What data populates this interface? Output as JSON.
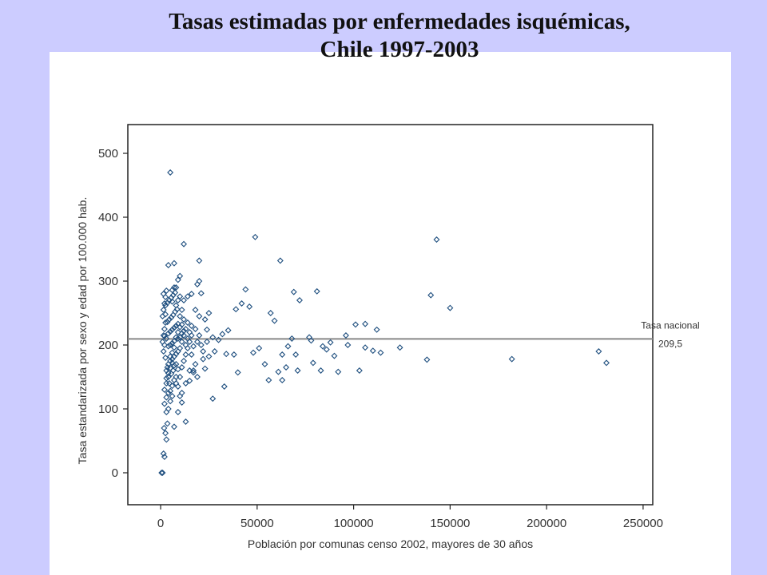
{
  "chart_data": {
    "type": "scatter",
    "title_line1": "Tasas estimadas por enfermedades isquémicas,",
    "title_line2": "Chile 1997-2003",
    "xlabel": "Población por comunas censo 2002, mayores de 30 años",
    "ylabel": "Tasa estandarizada por sexo y edad por 100.000 hab.",
    "xlim": [
      -17000,
      255000
    ],
    "ylim": [
      -50,
      545
    ],
    "x_ticks": [
      0,
      50000,
      100000,
      150000,
      200000,
      250000
    ],
    "x_tick_labels": [
      "0",
      "50000",
      "100000",
      "150000",
      "200000",
      "250000"
    ],
    "y_ticks": [
      0,
      100,
      200,
      300,
      400,
      500
    ],
    "y_tick_labels": [
      "0",
      "100",
      "200",
      "300",
      "400",
      "500"
    ],
    "grid": false,
    "reference_line": {
      "y": 209.5,
      "label_line1": "Tasa nacional",
      "label_line2": "209,5",
      "color": "#888888"
    },
    "marker_color": "#1f4f7f",
    "points": [
      [
        5000,
        470
      ],
      [
        49000,
        369
      ],
      [
        143000,
        365
      ],
      [
        12000,
        358
      ],
      [
        20000,
        332
      ],
      [
        62000,
        332
      ],
      [
        7000,
        328
      ],
      [
        4000,
        325
      ],
      [
        10000,
        308
      ],
      [
        9000,
        302
      ],
      [
        20000,
        300
      ],
      [
        19000,
        295
      ],
      [
        44000,
        287
      ],
      [
        81000,
        284
      ],
      [
        69000,
        283
      ],
      [
        8000,
        290
      ],
      [
        6000,
        286
      ],
      [
        21000,
        281
      ],
      [
        140000,
        278
      ],
      [
        72000,
        270
      ],
      [
        150000,
        258
      ],
      [
        42000,
        265
      ],
      [
        46000,
        260
      ],
      [
        39000,
        256
      ],
      [
        57000,
        250
      ],
      [
        59000,
        238
      ],
      [
        112000,
        224
      ],
      [
        101000,
        232
      ],
      [
        106000,
        233
      ],
      [
        77000,
        212
      ],
      [
        96000,
        215
      ],
      [
        68000,
        210
      ],
      [
        88000,
        204
      ],
      [
        84000,
        198
      ],
      [
        66000,
        198
      ],
      [
        106000,
        196
      ],
      [
        110000,
        191
      ],
      [
        114000,
        188
      ],
      [
        124000,
        196
      ],
      [
        138000,
        177
      ],
      [
        182000,
        178
      ],
      [
        227000,
        190
      ],
      [
        231000,
        172
      ],
      [
        63000,
        185
      ],
      [
        70000,
        185
      ],
      [
        78000,
        207
      ],
      [
        86000,
        193
      ],
      [
        90000,
        183
      ],
      [
        97000,
        200
      ],
      [
        54000,
        170
      ],
      [
        61000,
        158
      ],
      [
        65000,
        165
      ],
      [
        71000,
        160
      ],
      [
        79000,
        172
      ],
      [
        83000,
        160
      ],
      [
        92000,
        158
      ],
      [
        103000,
        160
      ],
      [
        56000,
        145
      ],
      [
        63000,
        145
      ],
      [
        48000,
        188
      ],
      [
        51000,
        195
      ],
      [
        38000,
        185
      ],
      [
        34000,
        186
      ],
      [
        28000,
        190
      ],
      [
        25000,
        182
      ],
      [
        22000,
        178
      ],
      [
        30000,
        208
      ],
      [
        32000,
        217
      ],
      [
        35000,
        223
      ],
      [
        27000,
        212
      ],
      [
        24000,
        205
      ],
      [
        40000,
        157
      ],
      [
        33000,
        135
      ],
      [
        27000,
        116
      ],
      [
        23000,
        163
      ],
      [
        19000,
        150
      ],
      [
        17000,
        157
      ],
      [
        15000,
        144
      ],
      [
        13000,
        80
      ],
      [
        11000,
        110
      ],
      [
        9000,
        95
      ],
      [
        7000,
        72
      ],
      [
        3000,
        52
      ],
      [
        2000,
        25
      ],
      [
        1500,
        30
      ],
      [
        1000,
        0
      ],
      [
        500,
        0
      ],
      [
        1800,
        70
      ],
      [
        2500,
        62
      ],
      [
        3500,
        77
      ],
      [
        2000,
        108
      ],
      [
        3000,
        118
      ],
      [
        4000,
        125
      ],
      [
        5000,
        128
      ],
      [
        6000,
        136
      ],
      [
        4500,
        140
      ],
      [
        7000,
        145
      ],
      [
        8000,
        150
      ],
      [
        5500,
        155
      ],
      [
        6500,
        160
      ],
      [
        3500,
        165
      ],
      [
        4000,
        170
      ],
      [
        5000,
        175
      ],
      [
        6000,
        178
      ],
      [
        7000,
        182
      ],
      [
        8000,
        186
      ],
      [
        9000,
        190
      ],
      [
        10000,
        195
      ],
      [
        4000,
        198
      ],
      [
        5000,
        200
      ],
      [
        6000,
        203
      ],
      [
        7000,
        206
      ],
      [
        3000,
        210
      ],
      [
        2000,
        214
      ],
      [
        4000,
        218
      ],
      [
        5000,
        221
      ],
      [
        6000,
        224
      ],
      [
        7000,
        227
      ],
      [
        8000,
        230
      ],
      [
        9000,
        233
      ],
      [
        3500,
        236
      ],
      [
        4500,
        240
      ],
      [
        5500,
        243
      ],
      [
        6500,
        247
      ],
      [
        7500,
        252
      ],
      [
        8500,
        256
      ],
      [
        2500,
        262
      ],
      [
        3500,
        266
      ],
      [
        4500,
        270
      ],
      [
        5500,
        274
      ],
      [
        6500,
        278
      ],
      [
        7500,
        282
      ],
      [
        2000,
        200
      ],
      [
        1500,
        190
      ],
      [
        2500,
        180
      ],
      [
        3000,
        160
      ],
      [
        1000,
        205
      ],
      [
        1500,
        215
      ],
      [
        2000,
        225
      ],
      [
        2500,
        235
      ],
      [
        1000,
        245
      ],
      [
        1500,
        255
      ],
      [
        2000,
        265
      ],
      [
        2500,
        275
      ],
      [
        1500,
        280
      ],
      [
        2500,
        248
      ],
      [
        10000,
        150
      ],
      [
        11000,
        165
      ],
      [
        12000,
        175
      ],
      [
        13000,
        185
      ],
      [
        14000,
        195
      ],
      [
        15000,
        205
      ],
      [
        16000,
        215
      ],
      [
        17000,
        160
      ],
      [
        18000,
        170
      ],
      [
        11000,
        205
      ],
      [
        12000,
        215
      ],
      [
        13000,
        225
      ],
      [
        14000,
        235
      ],
      [
        10000,
        245
      ],
      [
        11000,
        255
      ],
      [
        12000,
        270
      ],
      [
        14000,
        276
      ],
      [
        16000,
        280
      ],
      [
        18000,
        255
      ],
      [
        18000,
        225
      ],
      [
        20000,
        215
      ],
      [
        21000,
        200
      ],
      [
        22000,
        190
      ],
      [
        23000,
        240
      ],
      [
        25000,
        250
      ],
      [
        24000,
        224
      ],
      [
        20000,
        245
      ],
      [
        16000,
        185
      ],
      [
        17000,
        198
      ],
      [
        19000,
        205
      ],
      [
        15000,
        160
      ],
      [
        13000,
        140
      ],
      [
        11000,
        125
      ],
      [
        10000,
        120
      ],
      [
        9000,
        135
      ],
      [
        8000,
        140
      ],
      [
        6000,
        120
      ],
      [
        5000,
        112
      ],
      [
        4000,
        100
      ],
      [
        3000,
        95
      ],
      [
        8000,
        212
      ],
      [
        9000,
        220
      ],
      [
        10000,
        228
      ],
      [
        7000,
        196
      ],
      [
        6000,
        188
      ],
      [
        5000,
        182
      ],
      [
        4000,
        150
      ],
      [
        3000,
        140
      ],
      [
        2000,
        130
      ],
      [
        9000,
        162
      ],
      [
        8000,
        170
      ],
      [
        7000,
        168
      ],
      [
        6000,
        172
      ],
      [
        5000,
        164
      ],
      [
        4000,
        156
      ],
      [
        3000,
        148
      ],
      [
        11000,
        232
      ],
      [
        12000,
        240
      ],
      [
        8000,
        262
      ],
      [
        9000,
        270
      ],
      [
        7000,
        290
      ],
      [
        6000,
        268
      ],
      [
        10000,
        276
      ],
      [
        3000,
        285
      ],
      [
        9000,
        210
      ],
      [
        10000,
        212
      ],
      [
        11000,
        218
      ],
      [
        12000,
        222
      ],
      [
        13000,
        200
      ],
      [
        14000,
        210
      ],
      [
        15000,
        220
      ],
      [
        16000,
        230
      ]
    ]
  }
}
